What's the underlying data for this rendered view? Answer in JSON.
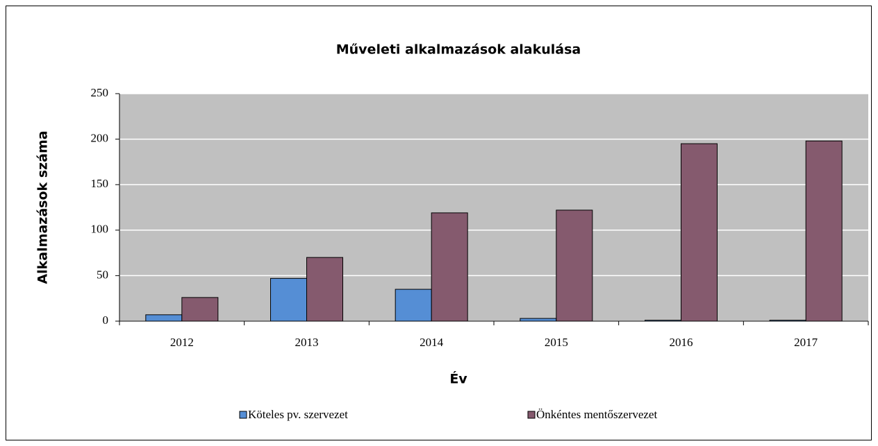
{
  "chart_data": {
    "type": "bar",
    "title": "Műveleti alkalmazások alakulása",
    "xlabel": "Év",
    "ylabel": "Alkalmazások száma",
    "categories": [
      "2012",
      "2013",
      "2014",
      "2015",
      "2016",
      "2017"
    ],
    "series": [
      {
        "name": "Köteles pv. szervezet",
        "color": "#558ed5",
        "values": [
          7,
          47,
          35,
          3,
          1,
          1
        ]
      },
      {
        "name": "Önkéntes mentőszervezet",
        "color": "#855a6e",
        "values": [
          26,
          70,
          119,
          122,
          195,
          198
        ]
      }
    ],
    "ylim": [
      0,
      250
    ],
    "yticks": [
      0,
      50,
      100,
      150,
      200,
      250
    ],
    "grid": true,
    "legend": "bottom",
    "plot_background": "#c0c0c0"
  }
}
